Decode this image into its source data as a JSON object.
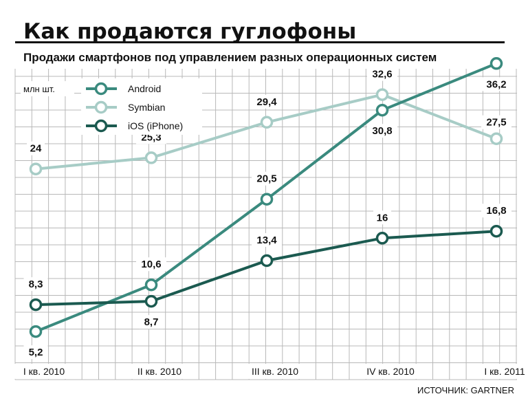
{
  "chart_data": {
    "type": "line",
    "title": "Как продаются гуглофоны",
    "subtitle": "Продажи смартфонов под управлением разных операционных систем",
    "ylabel": "млн шт.",
    "source": "ИСТОЧНИК: GARTNER",
    "categories": [
      "I кв. 2010",
      "II кв. 2010",
      "III кв. 2010",
      "IV кв. 2010",
      "I кв. 2011"
    ],
    "ylim": [
      0,
      40
    ],
    "grid": true,
    "legend_position": "top-left",
    "series": [
      {
        "name": "Android",
        "values": [
          5.2,
          10.6,
          20.5,
          30.8,
          36.2
        ],
        "labels": [
          "5,2",
          "10,6",
          "20,5",
          "30,8",
          "36,2"
        ],
        "color": "#3a8a7e"
      },
      {
        "name": "Symbian",
        "values": [
          24,
          25.3,
          29.4,
          32.6,
          27.5
        ],
        "labels": [
          "24",
          "25,3",
          "29,4",
          "32,6",
          "27,5"
        ],
        "color": "#a7ccc6"
      },
      {
        "name": "iOS (iPhone)",
        "values": [
          8.3,
          8.7,
          13.4,
          16,
          16.8
        ],
        "labels": [
          "8,3",
          "8,7",
          "13,4",
          "16",
          "16,8"
        ],
        "color": "#1b5a50"
      }
    ]
  }
}
